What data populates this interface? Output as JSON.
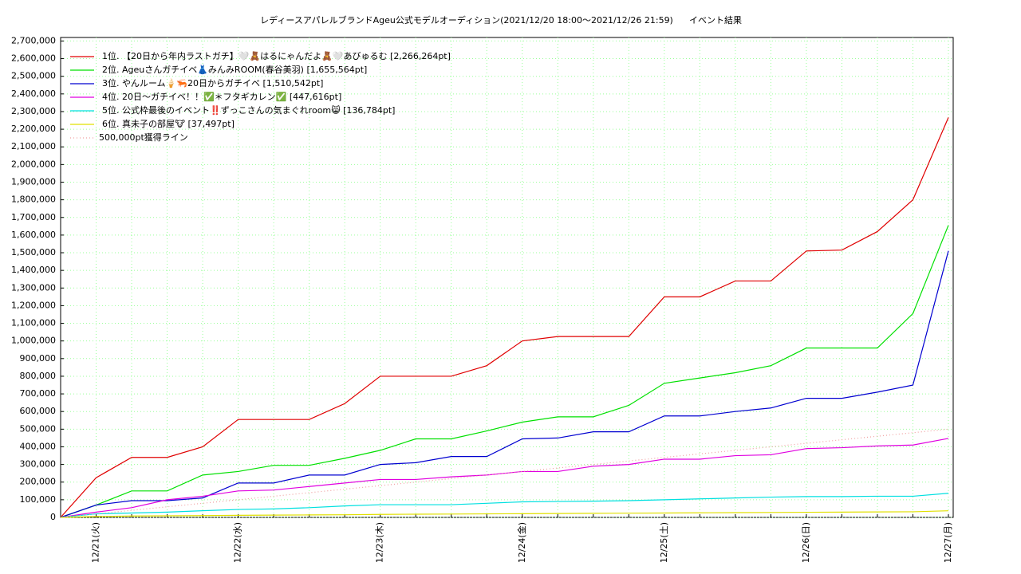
{
  "chart_data": {
    "type": "line",
    "title": "レディースアパレルブランドAgeu公式モデルオーディション(2021/12/20 18:00〜2021/12/26 21:59)",
    "subtitle": "イベント結果",
    "categories": [
      null,
      "12/21(火)",
      null,
      null,
      null,
      "12/22(水)",
      null,
      null,
      null,
      "12/23(木)",
      null,
      null,
      null,
      "12/24(金)",
      null,
      null,
      null,
      "12/25(土)",
      null,
      null,
      null,
      "12/26(日)",
      null,
      null,
      null,
      "12/27(月)"
    ],
    "series": [
      {
        "name": "1位. 【20日から年内ラストガチ】🤍🧸はるにゃんだよ🧸🤍あびゅるむ [2,266,264pt]",
        "color": "#e00000",
        "values": [
          0,
          225000,
          340000,
          340000,
          400000,
          555000,
          555000,
          555000,
          645000,
          800000,
          800000,
          800000,
          860000,
          1000000,
          1025000,
          1025000,
          1025000,
          1250000,
          1250000,
          1340000,
          1340000,
          1510000,
          1515000,
          1620000,
          1800000,
          2266264
        ]
      },
      {
        "name": "2位. Ageuさんガチイベ👗みんみROOM(春谷美羽) [1,655,564pt]",
        "color": "#00e000",
        "values": [
          0,
          70000,
          150000,
          150000,
          240000,
          260000,
          295000,
          295000,
          335000,
          380000,
          445000,
          445000,
          490000,
          540000,
          570000,
          570000,
          635000,
          760000,
          790000,
          820000,
          860000,
          960000,
          960000,
          960000,
          1155000,
          1655564
        ]
      },
      {
        "name": "3位. やんルーム🍦🦐20日からガチイベ [1,510,542pt]",
        "color": "#0000d0",
        "values": [
          0,
          70000,
          95000,
          95000,
          110000,
          195000,
          195000,
          240000,
          240000,
          300000,
          310000,
          345000,
          345000,
          445000,
          450000,
          485000,
          485000,
          575000,
          575000,
          600000,
          620000,
          675000,
          675000,
          710000,
          750000,
          1510542
        ]
      },
      {
        "name": "4位. 20日〜ガチイベ！！✅＊フタギカレン✅ [447,616pt]",
        "color": "#e000e0",
        "values": [
          0,
          30000,
          55000,
          100000,
          120000,
          150000,
          155000,
          175000,
          195000,
          215000,
          215000,
          230000,
          240000,
          260000,
          260000,
          290000,
          300000,
          330000,
          330000,
          350000,
          355000,
          390000,
          395000,
          405000,
          410000,
          447616
        ]
      },
      {
        "name": "5位. 公式枠最後のイベント‼️ずっこさんの気まぐれroom😸 [136,784pt]",
        "color": "#00e0e0",
        "values": [
          0,
          20000,
          25000,
          30000,
          38000,
          45000,
          48000,
          55000,
          65000,
          72000,
          72000,
          72000,
          80000,
          88000,
          90000,
          92000,
          95000,
          100000,
          105000,
          110000,
          115000,
          118000,
          118000,
          120000,
          120000,
          136784
        ]
      },
      {
        "name": "6位. 真未子の部屋🐮 [37,497pt]",
        "color": "#e0e000",
        "values": [
          0,
          5000,
          8000,
          9000,
          10000,
          12000,
          13000,
          14000,
          15000,
          17000,
          18000,
          19000,
          20000,
          21000,
          22000,
          23000,
          24000,
          25000,
          26000,
          27000,
          28000,
          29000,
          30000,
          31000,
          32000,
          37497
        ]
      },
      {
        "name": "500,000pt獲得ライン",
        "color": "#f0a0a0",
        "dashed": true,
        "values": [
          0,
          20000,
          40000,
          60000,
          80000,
          100000,
          120000,
          140000,
          160000,
          180000,
          200000,
          220000,
          240000,
          260000,
          280000,
          300000,
          320000,
          340000,
          360000,
          380000,
          400000,
          420000,
          440000,
          460000,
          480000,
          500000
        ]
      }
    ],
    "ylim": [
      0,
      2720000
    ],
    "yticks": [
      0,
      {
        "value": 100000,
        "label": "100,000"
      },
      {
        "value": 200000,
        "label": "200,000"
      },
      {
        "value": 300000,
        "label": "300,000"
      },
      {
        "value": 400000,
        "label": "400,000"
      },
      {
        "value": 500000,
        "label": "500,000"
      },
      {
        "value": 600000,
        "label": "600,000"
      },
      {
        "value": 700000,
        "label": "700,000"
      },
      {
        "value": 800000,
        "label": "800,000"
      },
      {
        "value": 900000,
        "label": "900,000"
      },
      {
        "value": 1000000,
        "label": "1,000,000"
      },
      {
        "value": 1100000,
        "label": "1,100,000"
      },
      {
        "value": 1200000,
        "label": "1,200,000"
      },
      {
        "value": 1300000,
        "label": "1,300,000"
      },
      {
        "value": 1400000,
        "label": "1,400,000"
      },
      {
        "value": 1500000,
        "label": "1,500,000"
      },
      {
        "value": 1600000,
        "label": "1,600,000"
      },
      {
        "value": 1700000,
        "label": "1,700,000"
      },
      {
        "value": 1800000,
        "label": "1,800,000"
      },
      {
        "value": 1900000,
        "label": "1,900,000"
      },
      {
        "value": 2000000,
        "label": "2,000,000"
      },
      {
        "value": 2100000,
        "label": "2,100,000"
      },
      {
        "value": 2200000,
        "label": "2,200,000"
      },
      {
        "value": 2300000,
        "label": "2,300,000"
      },
      {
        "value": 2400000,
        "label": "2,400,000"
      },
      {
        "value": 2500000,
        "label": "2,500,000"
      },
      {
        "value": 2600000,
        "label": "2,600,000"
      },
      {
        "value": 2700000,
        "label": "2,700,000"
      }
    ],
    "grid": true,
    "legend": "upper-left"
  }
}
